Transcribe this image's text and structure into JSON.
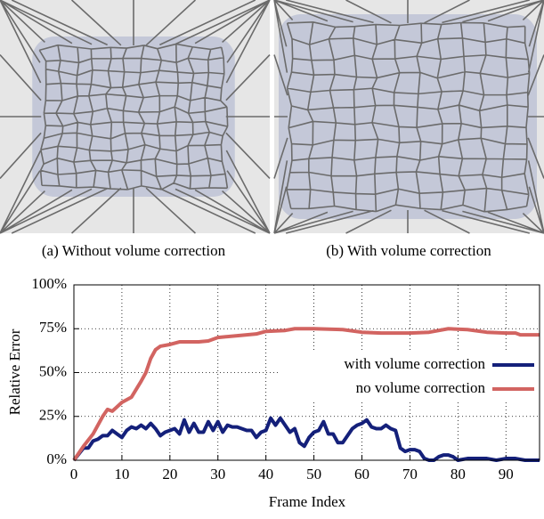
{
  "panels": [
    {
      "caption": "(a)  Without volume correction"
    },
    {
      "caption": "(b)  With volume correction"
    }
  ],
  "chart_data": {
    "type": "line",
    "xlabel": "Frame Index",
    "ylabel": "Relative Error",
    "xlim": [
      0,
      97
    ],
    "ylim": [
      0,
      100
    ],
    "grid": true,
    "legend": "center right",
    "xticks": [
      0,
      10,
      20,
      30,
      40,
      50,
      60,
      70,
      80,
      90
    ],
    "yticks": [
      {
        "value": 0,
        "label": "0%"
      },
      {
        "value": 25,
        "label": "25%"
      },
      {
        "value": 50,
        "label": "50%"
      },
      {
        "value": 75,
        "label": "75%"
      },
      {
        "value": 100,
        "label": "100%"
      }
    ],
    "series": [
      {
        "name": "with volume correction",
        "color": "#14207a",
        "x": [
          0,
          2,
          3,
          4,
          5,
          6,
          7,
          8,
          9,
          10,
          11,
          12,
          13,
          14,
          15,
          16,
          17,
          18,
          19,
          20,
          21,
          22,
          23,
          24,
          25,
          26,
          27,
          28,
          29,
          30,
          31,
          32,
          33,
          34,
          36,
          37,
          38,
          39,
          40,
          41,
          42,
          43,
          44,
          45,
          46,
          47,
          48,
          49,
          50,
          51,
          52,
          53,
          54,
          55,
          56,
          57,
          58,
          59,
          60,
          61,
          62,
          63,
          64,
          65,
          66,
          67,
          68,
          69,
          70,
          71,
          72,
          73,
          74,
          75,
          76,
          77,
          78,
          79,
          80,
          82,
          84,
          86,
          88,
          90,
          92,
          94,
          97
        ],
        "values": [
          0,
          7,
          7,
          11,
          12,
          14,
          14,
          17,
          15,
          13,
          17,
          19,
          18,
          20,
          18,
          21,
          18,
          14,
          16,
          17,
          18,
          15,
          23,
          16,
          21,
          16,
          16,
          22,
          17,
          22,
          16,
          20,
          19,
          19,
          17,
          17,
          13,
          16,
          17,
          24,
          20,
          24,
          20,
          16,
          18,
          10,
          8,
          13,
          16,
          17,
          22,
          15,
          15,
          10,
          10,
          14,
          18,
          20,
          21,
          23,
          19,
          18,
          18,
          20,
          18,
          17,
          7,
          5,
          6,
          6,
          5,
          1,
          0,
          0,
          2,
          3,
          3,
          2,
          0,
          1,
          1,
          1,
          0,
          1,
          1,
          0,
          0
        ]
      },
      {
        "name": "no volume correction",
        "color": "#d26461",
        "x": [
          0,
          2,
          4,
          6,
          7,
          8,
          10,
          12,
          14,
          15,
          16,
          17,
          18,
          20,
          22,
          26,
          28,
          30,
          34,
          38,
          40,
          44,
          46,
          50,
          56,
          60,
          64,
          70,
          74,
          78,
          82,
          86,
          90,
          92,
          93,
          97
        ],
        "values": [
          0,
          8,
          15,
          25,
          29,
          28,
          33,
          36,
          45,
          50,
          58,
          63,
          65,
          66,
          67.5,
          67.5,
          68,
          70,
          71,
          72,
          73.5,
          74,
          75,
          75,
          74.5,
          73,
          72.5,
          72.5,
          73,
          75,
          74.5,
          73,
          72.5,
          72.5,
          71.5,
          71.5
        ]
      }
    ]
  }
}
